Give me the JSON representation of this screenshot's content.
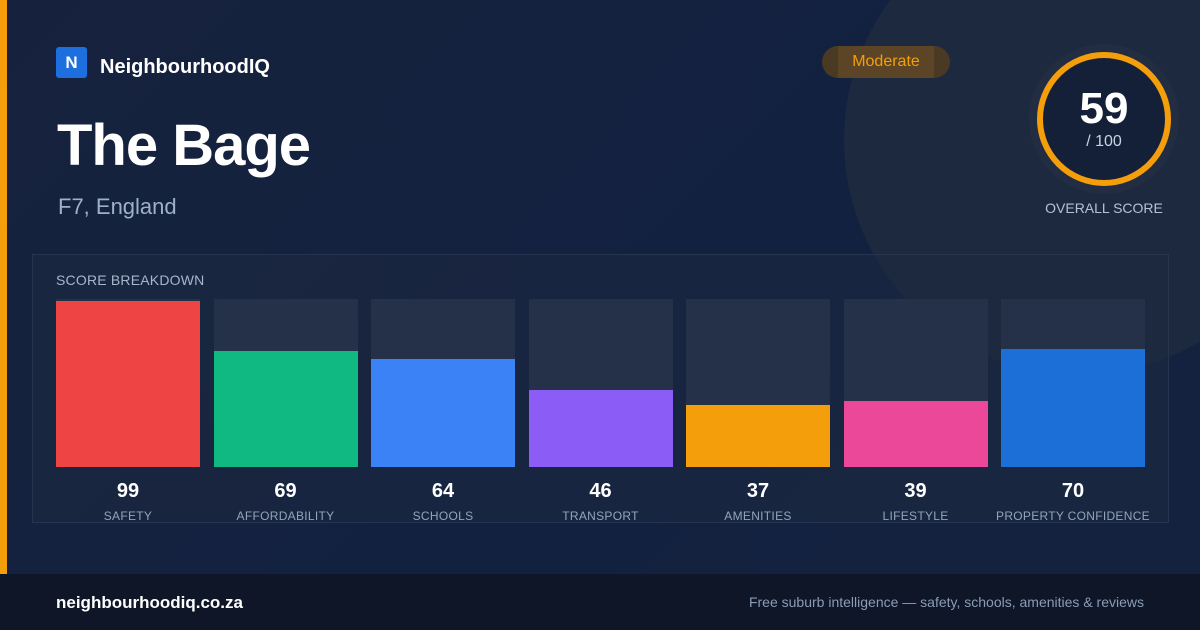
{
  "brand": {
    "logo_letter": "N",
    "name": "NeighbourhoodIQ"
  },
  "suburb": {
    "name": "The Bage",
    "location": "F7, England"
  },
  "rating_badge": {
    "label": "Moderate",
    "color": "#f59e0b"
  },
  "overall": {
    "score": "59",
    "max": "/ 100",
    "caption": "OVERALL SCORE",
    "ring_color": "#f59e0b",
    "ring_fraction": 0.59
  },
  "breakdown": {
    "title": "SCORE BREAKDOWN",
    "max_score": 100
  },
  "chart_data": {
    "type": "bar",
    "categories": [
      "SAFETY",
      "AFFORDABILITY",
      "SCHOOLS",
      "TRANSPORT",
      "AMENITIES",
      "LIFESTYLE",
      "PROPERTY CONFIDENCE"
    ],
    "values": [
      99,
      69,
      64,
      46,
      37,
      39,
      70
    ],
    "colors": [
      "#ef4444",
      "#10b981",
      "#3b82f6",
      "#8b5cf6",
      "#f59e0b",
      "#ec4899",
      "#1d6fd8"
    ],
    "ylim": [
      0,
      100
    ],
    "title": "SCORE BREAKDOWN"
  },
  "footer": {
    "url": "neighbourhoodiq.co.za",
    "tagline": "Free suburb intelligence — safety, schools, amenities & reviews"
  },
  "accent_color": "#f59e0b"
}
